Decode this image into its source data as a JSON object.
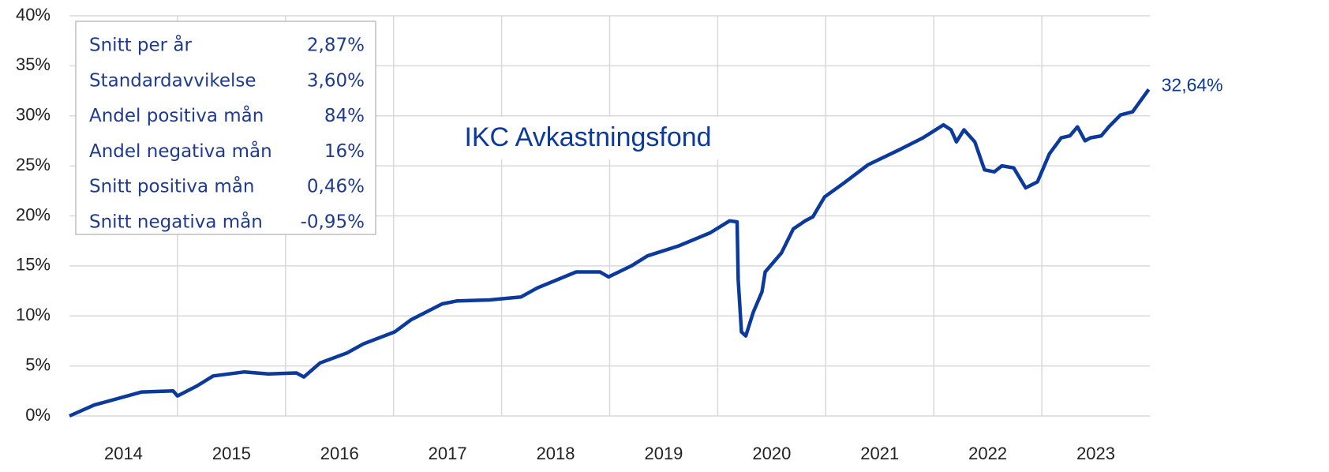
{
  "chart_data": {
    "type": "line",
    "categories": [
      "2014",
      "2015",
      "2016",
      "2017",
      "2018",
      "2019",
      "2020",
      "2021",
      "2022",
      "2023"
    ],
    "x": [
      2014.0,
      2014.23,
      2014.67,
      2014.96,
      2015.0,
      2015.18,
      2015.33,
      2015.62,
      2015.84,
      2016.1,
      2016.17,
      2016.32,
      2016.57,
      2016.72,
      2017.01,
      2017.16,
      2017.45,
      2017.59,
      2017.89,
      2018.18,
      2018.33,
      2018.69,
      2018.91,
      2018.99,
      2019.2,
      2019.35,
      2019.64,
      2019.93,
      2020.11,
      2020.18,
      2020.19,
      2020.22,
      2020.26,
      2020.33,
      2020.41,
      2020.44,
      2020.59,
      2020.7,
      2020.81,
      2020.88,
      2020.99,
      2021.17,
      2021.39,
      2021.68,
      2021.9,
      2022.09,
      2022.16,
      2022.21,
      2022.28,
      2022.38,
      2022.47,
      2022.56,
      2022.63,
      2022.74,
      2022.85,
      2022.96,
      2023.07,
      2023.18,
      2023.26,
      2023.33,
      2023.4,
      2023.45,
      2023.55,
      2023.62,
      2023.73,
      2023.84,
      2023.99
    ],
    "series": [
      {
        "name": "IKC Avkastningsfond",
        "color": "#0b3a9c",
        "values": [
          0,
          1.1,
          2.4,
          2.5,
          2.0,
          3.0,
          4.0,
          4.4,
          4.2,
          4.3,
          3.9,
          5.3,
          6.3,
          7.2,
          8.4,
          9.6,
          11.2,
          11.5,
          11.6,
          11.9,
          12.8,
          14.4,
          14.4,
          13.9,
          15.0,
          16.0,
          17.0,
          18.3,
          19.5,
          19.4,
          13.6,
          8.4,
          8.0,
          10.4,
          12.4,
          14.4,
          16.3,
          18.7,
          19.5,
          19.9,
          21.9,
          23.3,
          25.1,
          26.6,
          27.8,
          29.1,
          28.6,
          27.4,
          28.6,
          27.4,
          24.6,
          24.4,
          25.0,
          24.8,
          22.8,
          23.4,
          26.2,
          27.8,
          28.0,
          28.9,
          27.5,
          27.8,
          28.0,
          28.9,
          30.1,
          30.4,
          32.64
        ]
      }
    ],
    "end_label": "32,64%",
    "xlim": [
      2014,
      2024
    ],
    "ylim": [
      0,
      40
    ],
    "yticks": [
      {
        "value": 0,
        "label": "0%"
      },
      {
        "value": 5,
        "label": "5%"
      },
      {
        "value": 10,
        "label": "10%"
      },
      {
        "value": 15,
        "label": "15%"
      },
      {
        "value": 20,
        "label": "20%"
      },
      {
        "value": 25,
        "label": "25%"
      },
      {
        "value": 30,
        "label": "30%"
      },
      {
        "value": 35,
        "label": "35%"
      },
      {
        "value": 40,
        "label": "40%"
      }
    ],
    "grid": true,
    "stats": [
      [
        "Snitt per år",
        "2,87%"
      ],
      [
        "Standardavvikelse",
        "3,60%"
      ],
      [
        "Andel positiva mån",
        "84%"
      ],
      [
        "Andel negativa mån",
        "16%"
      ],
      [
        "Snitt positiva mån",
        "0,46%"
      ],
      [
        "Snitt negativa mån",
        "-0,95%"
      ]
    ]
  }
}
